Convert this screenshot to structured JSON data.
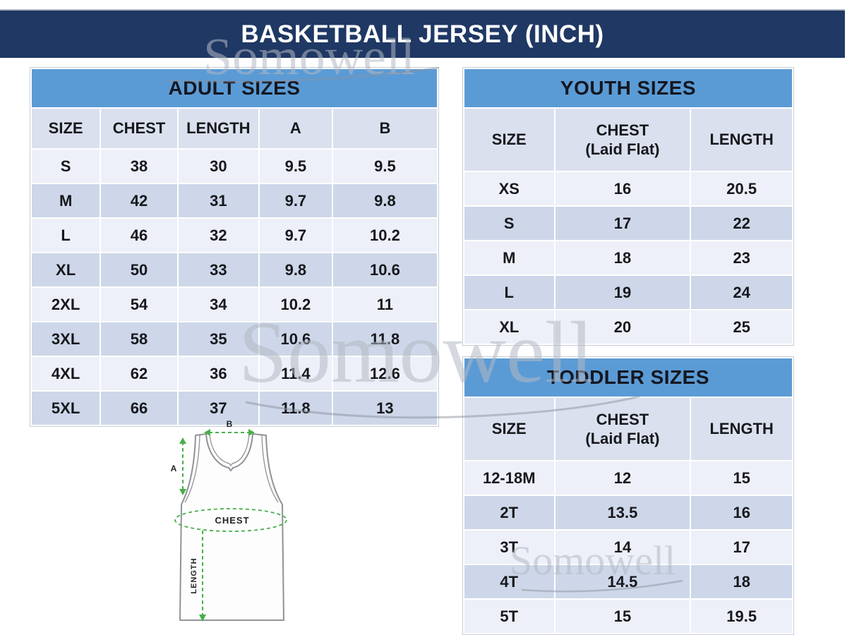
{
  "title_bar": {
    "text": "BASKETBALL JERSEY (INCH)"
  },
  "watermark": {
    "text": "Somowell"
  },
  "colors": {
    "navy": "#1F3864",
    "header_blue": "#5B9BD5",
    "column_header_bg": "#DAE0EE",
    "row_light": "#EDF0F8",
    "row_dark": "#CDD7E9",
    "measure_green": "#46B049"
  },
  "tables": {
    "adult": {
      "title": "ADULT SIZES",
      "columns": [
        "SIZE",
        "CHEST",
        "LENGTH",
        "A",
        "B"
      ],
      "col_widths": [
        "17%",
        "19%",
        "20%",
        "18%",
        "26%"
      ],
      "rows": [
        [
          "S",
          "38",
          "30",
          "9.5",
          "9.5"
        ],
        [
          "M",
          "42",
          "31",
          "9.7",
          "9.8"
        ],
        [
          "L",
          "46",
          "32",
          "9.7",
          "10.2"
        ],
        [
          "XL",
          "50",
          "33",
          "9.8",
          "10.6"
        ],
        [
          "2XL",
          "54",
          "34",
          "10.2",
          "11"
        ],
        [
          "3XL",
          "58",
          "35",
          "10.6",
          "11.8"
        ],
        [
          "4XL",
          "62",
          "36",
          "11.4",
          "12.6"
        ],
        [
          "5XL",
          "66",
          "37",
          "11.8",
          "13"
        ]
      ]
    },
    "youth": {
      "title": "YOUTH SIZES",
      "columns": [
        "SIZE",
        "CHEST\n(Laid Flat)",
        "LENGTH"
      ],
      "col_widths": [
        "27.5%",
        "41.5%",
        "31%"
      ],
      "rows": [
        [
          "XS",
          "16",
          "20.5"
        ],
        [
          "S",
          "17",
          "22"
        ],
        [
          "M",
          "18",
          "23"
        ],
        [
          "L",
          "19",
          "24"
        ],
        [
          "XL",
          "20",
          "25"
        ]
      ]
    },
    "toddler": {
      "title": "TODDLER SIZES",
      "columns": [
        "SIZE",
        "CHEST\n(Laid Flat)",
        "LENGTH"
      ],
      "col_widths": [
        "27.5%",
        "41.5%",
        "31%"
      ],
      "rows": [
        [
          "12-18M",
          "12",
          "15"
        ],
        [
          "2T",
          "13.5",
          "16"
        ],
        [
          "3T",
          "14",
          "17"
        ],
        [
          "4T",
          "14.5",
          "18"
        ],
        [
          "5T",
          "15",
          "19.5"
        ]
      ]
    }
  },
  "diagram": {
    "labels": {
      "a": "A",
      "b": "B",
      "chest": "CHEST",
      "length": "LENGTH"
    }
  }
}
